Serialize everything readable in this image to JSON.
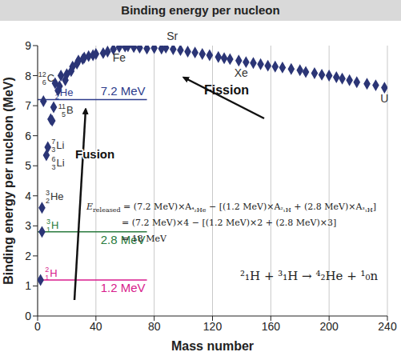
{
  "chart_data": {
    "type": "scatter",
    "title": "Binding energy per nucleon",
    "x_label": "Mass number",
    "y_label": "Binding energy per nucleon (MeV)",
    "xlim": [
      0,
      240
    ],
    "ylim": [
      0,
      9
    ],
    "xticks": [
      0,
      40,
      80,
      120,
      160,
      200,
      240
    ],
    "yticks": [
      0,
      1,
      2,
      3,
      4,
      5,
      6,
      7,
      8,
      9
    ],
    "grid": "x",
    "color": "#2b3576",
    "marker": "diamond",
    "x": [
      2,
      3,
      3,
      4,
      6,
      7,
      9,
      10,
      11,
      12,
      14,
      15,
      16,
      19,
      20,
      23,
      24,
      27,
      28,
      31,
      32,
      35,
      38,
      40,
      45,
      48,
      52,
      56,
      60,
      62,
      66,
      70,
      75,
      80,
      85,
      88,
      93,
      98,
      103,
      108,
      113,
      118,
      124,
      128,
      132,
      138,
      143,
      148,
      153,
      158,
      163,
      168,
      174,
      180,
      184,
      190,
      195,
      200,
      205,
      209,
      214,
      219,
      226,
      232,
      238
    ],
    "values": [
      1.2,
      2.8,
      3.6,
      7.15,
      5.35,
      5.62,
      6.55,
      6.5,
      6.95,
      7.75,
      7.5,
      7.65,
      8.0,
      7.85,
      8.05,
      8.15,
      8.3,
      8.4,
      8.5,
      8.55,
      8.6,
      8.65,
      8.68,
      8.72,
      8.75,
      8.8,
      8.88,
      8.95,
      8.97,
      8.98,
      8.95,
      8.93,
      8.9,
      8.92,
      8.9,
      8.93,
      8.88,
      8.85,
      8.8,
      8.77,
      8.72,
      8.68,
      8.62,
      8.58,
      8.55,
      8.5,
      8.45,
      8.42,
      8.38,
      8.33,
      8.3,
      8.27,
      8.22,
      8.18,
      8.12,
      8.08,
      8.03,
      8.0,
      7.95,
      7.9,
      7.85,
      7.78,
      7.73,
      7.68,
      7.6
    ],
    "point_labels": [
      {
        "A": 2,
        "Z": 1,
        "symbol": "H",
        "color": "#d81b8c"
      },
      {
        "A": 3,
        "Z": 1,
        "symbol": "H",
        "color": "#2a7a3e"
      },
      {
        "A": 3,
        "Z": 2,
        "symbol": "He",
        "color": "#333333"
      },
      {
        "A": 4,
        "Z": 2,
        "symbol": "He",
        "color": "#2e3c8c"
      },
      {
        "A": 6,
        "Z": 3,
        "symbol": "Li",
        "color": "#333333"
      },
      {
        "A": 7,
        "Z": 3,
        "symbol": "Li",
        "color": "#333333"
      },
      null,
      null,
      {
        "A": 11,
        "Z": 5,
        "symbol": "B",
        "color": "#333333"
      },
      {
        "A": 12,
        "Z": 6,
        "symbol": "C",
        "color": "#333333"
      },
      null,
      null,
      null,
      null,
      null,
      null,
      null,
      null,
      null,
      null,
      null,
      null,
      null,
      null,
      null,
      null,
      null,
      {
        "text": "Fe",
        "color": "#333333"
      },
      null,
      null,
      null,
      null,
      null,
      null,
      null,
      {
        "text": "Sr",
        "color": "#333333"
      },
      null,
      null,
      null,
      null,
      null,
      null,
      null,
      null,
      {
        "text": "Xe",
        "color": "#333333"
      },
      null,
      null,
      null,
      null,
      null,
      null,
      null,
      null,
      null,
      null,
      null,
      null,
      null,
      null,
      null,
      null,
      null,
      null,
      null,
      {
        "text": "U",
        "color": "#333333"
      }
    ],
    "reference_lines": [
      {
        "value": 7.2,
        "x_end": 75,
        "label": "7.2 MeV",
        "color": "#2e3c8c"
      },
      {
        "value": 2.8,
        "x_end": 75,
        "label": "2.8 MeV",
        "color": "#2a7a3e"
      },
      {
        "value": 1.2,
        "x_end": 75,
        "label": "1.2 MeV",
        "color": "#d81b8c"
      }
    ],
    "annotations": {
      "fusion": "Fusion",
      "fission": "Fission"
    },
    "equation": [
      [
        {
          "text": "E",
          "sub": false
        },
        {
          "text": "released",
          "sub": true
        },
        {
          "text": " = (7.2 MeV)×A",
          "sub": false
        },
        {
          "text": "⁴₂He",
          "sub": true
        },
        {
          "text": " − [(1.2 MeV)×A",
          "sub": false
        },
        {
          "text": "²₁H",
          "sub": true
        },
        {
          "text": " + (2.8 MeV)×A",
          "sub": false
        },
        {
          "text": "³₁H",
          "sub": true
        },
        {
          "text": "]",
          "sub": false
        }
      ],
      [
        {
          "text": "= (7.2 MeV)×4 − [(1.2 MeV)×2 + (2.8 MeV)×3]",
          "sub": false
        }
      ],
      [
        {
          "text": "= 18 MeV",
          "sub": false
        }
      ]
    ],
    "reaction": "²₁H + ³₁H → ⁴₂He + ¹₀n"
  }
}
